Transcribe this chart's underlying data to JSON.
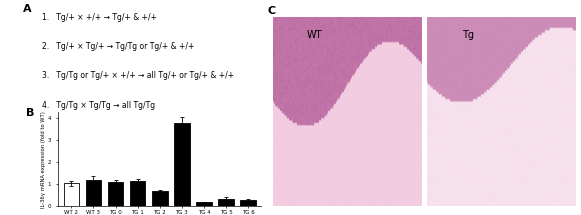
{
  "panel_A_lines": [
    "1.   Tg/+ × +/+ → Tg/+ & +/+",
    "2.   Tg/+ × Tg/+ → Tg/Tg or Tg/+ & +/+",
    "3.   Tg/Tg or Tg/+ × +/+ → all Tg/+ or Tg/+ & +/+",
    "4.   Tg/Tg × Tg/Tg → all Tg/Tg"
  ],
  "bar_labels": [
    "WT 2",
    "WT 3",
    "TG 0",
    "TG 1",
    "TG 2",
    "TG 3",
    "TG 4",
    "TG 5",
    "TG 6"
  ],
  "bar_values": [
    1.05,
    1.2,
    1.1,
    1.15,
    0.7,
    3.8,
    0.18,
    0.35,
    0.3
  ],
  "bar_errors": [
    0.12,
    0.18,
    0.1,
    0.1,
    0.06,
    0.25,
    0.04,
    0.06,
    0.05
  ],
  "bar_colors": [
    "white",
    "black",
    "black",
    "black",
    "black",
    "black",
    "black",
    "black",
    "black"
  ],
  "bar_edgecolors": [
    "black",
    "black",
    "black",
    "black",
    "black",
    "black",
    "black",
    "black",
    "black"
  ],
  "ylabel": "IL-36γ mRNA expression (fold to WT)",
  "panel_A_label": "A",
  "panel_B_label": "B",
  "panel_C_label": "C",
  "panel_C_WT_label": "WT",
  "panel_C_Tg_label": "Tg",
  "ylim": [
    0,
    4.3
  ],
  "background_color": "#ffffff",
  "label_fontsize": 8,
  "text_fontsize": 5.5
}
